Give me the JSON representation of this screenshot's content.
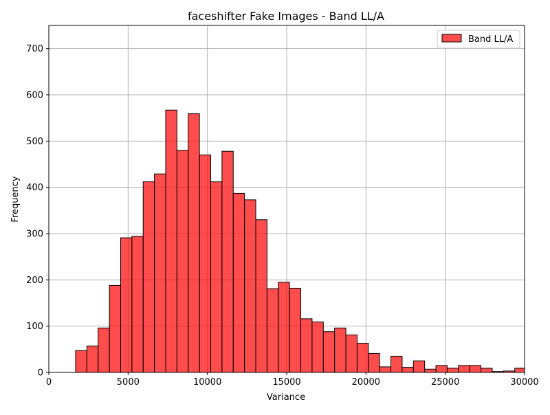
{
  "chart_data": {
    "type": "bar",
    "title": "faceshifter Fake Images - Band LL/A",
    "xlabel": "Variance",
    "ylabel": "Frequency",
    "xlim": [
      0,
      30000
    ],
    "ylim": [
      0,
      750
    ],
    "xticks": [
      0,
      5000,
      10000,
      15000,
      20000,
      25000,
      30000
    ],
    "yticks": [
      0,
      100,
      200,
      300,
      400,
      500,
      600,
      700
    ],
    "grid": true,
    "legend_position": "top-right",
    "bar_color": "#ff0000",
    "bar_alpha": 0.7,
    "edge_color": "#000000",
    "series": [
      {
        "name": "Band LL/A",
        "bin_edges": [
          1690,
          2400,
          3110,
          3820,
          4530,
          5240,
          5950,
          6660,
          7370,
          8080,
          8790,
          9500,
          10210,
          10920,
          11630,
          12340,
          13050,
          13760,
          14470,
          15180,
          15890,
          16600,
          17310,
          18020,
          18730,
          19440,
          20150,
          20860,
          21570,
          22280,
          22990,
          23700,
          24410,
          25120,
          25830,
          26540,
          27250,
          27960,
          28670,
          29380,
          30090
        ],
        "values": [
          47,
          57,
          96,
          188,
          291,
          294,
          412,
          429,
          567,
          480,
          559,
          470,
          412,
          478,
          387,
          373,
          330,
          181,
          195,
          182,
          116,
          109,
          88,
          96,
          81,
          63,
          41,
          12,
          35,
          11,
          25,
          7,
          15,
          9,
          15,
          15,
          9,
          2,
          3,
          9
        ]
      }
    ]
  }
}
